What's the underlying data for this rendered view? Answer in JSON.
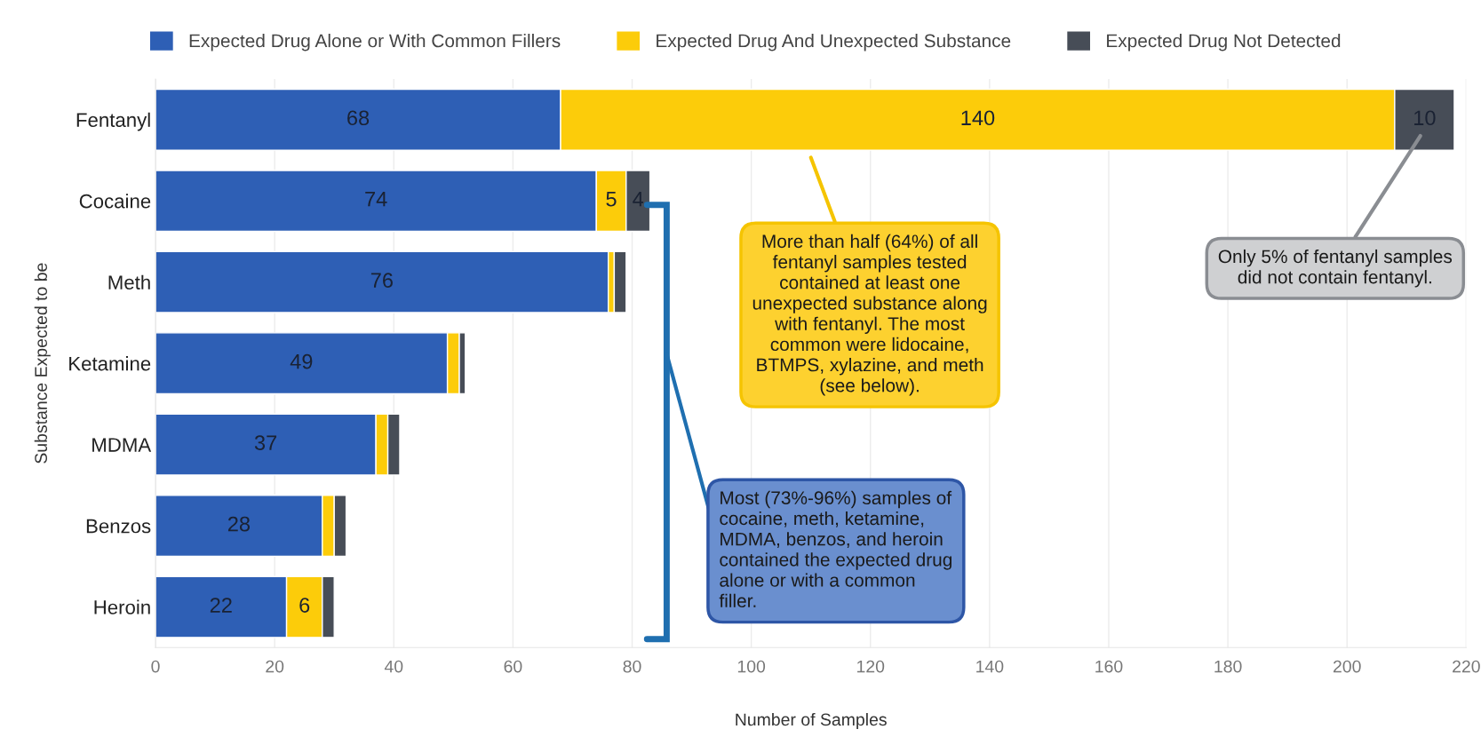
{
  "chart_data": {
    "type": "bar",
    "orientation": "horizontal",
    "stacked": true,
    "categories": [
      "Fentanyl",
      "Cocaine",
      "Meth",
      "Ketamine",
      "MDMA",
      "Benzos",
      "Heroin"
    ],
    "series": [
      {
        "name": "Expected Drug Alone or With Common Fillers",
        "color": "#2e5fb5",
        "values": [
          68,
          74,
          76,
          49,
          37,
          28,
          22
        ],
        "value_labels": [
          "68",
          "74",
          "76",
          "49",
          "37",
          "28",
          "22"
        ]
      },
      {
        "name": "Expected Drug And Unexpected Substance",
        "color": "#fccc0a",
        "values": [
          140,
          5,
          1,
          2,
          2,
          2,
          6
        ],
        "value_labels": [
          "140",
          "5",
          null,
          null,
          null,
          null,
          "6"
        ]
      },
      {
        "name": "Expected Drug Not Detected",
        "color": "#474d57",
        "values": [
          10,
          4,
          2,
          1,
          2,
          2,
          2
        ],
        "value_labels": [
          "10",
          "4",
          null,
          null,
          null,
          null,
          null
        ]
      }
    ],
    "xlabel": "Number of Samples",
    "ylabel": "Substance Expected to be",
    "xlim": [
      0,
      220
    ],
    "xticks": [
      0,
      20,
      40,
      60,
      80,
      100,
      120,
      140,
      160,
      180,
      200,
      220
    ],
    "grid": "x",
    "legend": "top",
    "annotations": [
      "More than half (64%) of all\nfentanyl samples tested\ncontained at least one\nunexpected substance along\nwith fentanyl. The most\ncommon were lidocaine,\nBTMPS, xylazine, and meth\n(see below).",
      "Only 5% of fentanyl samples\ndid not contain fentanyl.",
      "Most (73%-96%) samples of\ncocaine, meth, ketamine,\nMDMA, benzos, and heroin\ncontained the expected drug\nalone or with a common\nfiller."
    ]
  }
}
